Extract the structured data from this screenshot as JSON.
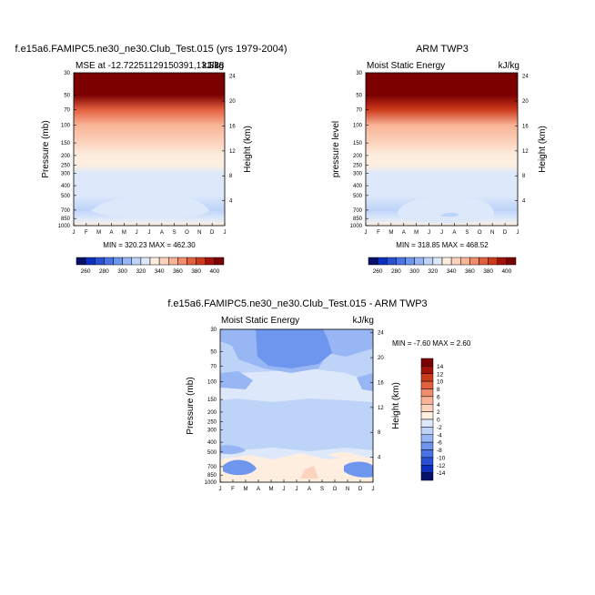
{
  "colors": {
    "mse_scale": [
      "#06116b",
      "#0c2fbf",
      "#2850d6",
      "#4a74e6",
      "#6f96ef",
      "#98b6f4",
      "#bdd3f8",
      "#dde9fb",
      "#fdeee0",
      "#fcd3bd",
      "#f9b497",
      "#f18c6c",
      "#e3603f",
      "#cc3a1c",
      "#a31208",
      "#7b0000"
    ],
    "diff_scale": [
      "#06116b",
      "#0c2fbf",
      "#2850d6",
      "#4a74e6",
      "#6f96ef",
      "#98b6f4",
      "#bdd3f8",
      "#dde9fb",
      "#fdeee0",
      "#fcd3bd",
      "#f9b497",
      "#f18c6c",
      "#e3603f",
      "#cc3a1c",
      "#a31208",
      "#7b0000"
    ]
  },
  "chart_data": [
    {
      "type": "heatmap",
      "panel": "model",
      "title": "f.e15a6.FAMIPC5.ne30_ne30.Club_Test.015 (yrs 1979-2004)",
      "left_label": "MSE at -12.72251129150391,131.18",
      "right_label": "kJ/kg",
      "right_label_overlap": "33",
      "ylabel": "Pressure (mb)",
      "ylabel_right": "Height (km)",
      "x_ticks": [
        "J",
        "F",
        "M",
        "A",
        "M",
        "J",
        "J",
        "A",
        "S",
        "O",
        "N",
        "D",
        "J"
      ],
      "y_ticks": [
        "30",
        "50",
        "70",
        "100",
        "150",
        "200",
        "250",
        "300",
        "400",
        "500",
        "700",
        "850",
        "1000"
      ],
      "y_right_ticks": [
        "24",
        "20",
        "16",
        "12",
        "8",
        "4"
      ],
      "min_max": "MIN = 320.23 MAX = 462.30",
      "colorbar_labels": [
        "260",
        "280",
        "300",
        "320",
        "340",
        "360",
        "380",
        "400"
      ],
      "values_note": "MSE (kJ/kg) by pressure level, roughly constant across months",
      "pressure_levels": [
        30,
        50,
        70,
        100,
        150,
        200,
        250,
        300,
        400,
        500,
        700,
        850,
        1000
      ],
      "values": [
        460,
        400,
        378,
        355,
        340,
        333,
        330,
        329,
        327,
        325,
        318,
        324,
        336
      ]
    },
    {
      "type": "heatmap",
      "panel": "obs",
      "title": "ARM TWP3",
      "left_label": "Moist Static Energy",
      "right_label": "kJ/kg",
      "ylabel": "pressure level",
      "ylabel_right": "Height (km)",
      "x_ticks": [
        "J",
        "F",
        "M",
        "A",
        "M",
        "J",
        "J",
        "A",
        "S",
        "O",
        "N",
        "D",
        "J"
      ],
      "y_ticks": [
        "30",
        "50",
        "70",
        "100",
        "150",
        "200",
        "250",
        "300",
        "400",
        "500",
        "700",
        "850",
        "1000"
      ],
      "y_right_ticks": [
        "24",
        "20",
        "16",
        "12",
        "8",
        "4"
      ],
      "min_max": "MIN = 318.85 MAX = 468.52",
      "colorbar_labels": [
        "260",
        "280",
        "300",
        "320",
        "340",
        "360",
        "380",
        "400"
      ],
      "pressure_levels": [
        30,
        50,
        70,
        100,
        150,
        200,
        250,
        300,
        400,
        500,
        700,
        850,
        1000
      ],
      "values": [
        465,
        402,
        380,
        356,
        341,
        334,
        331,
        329,
        326,
        322,
        317,
        325,
        338
      ]
    },
    {
      "type": "heatmap",
      "panel": "difference",
      "title": "f.e15a6.FAMIPC5.ne30_ne30.Club_Test.015 - ARM TWP3",
      "left_label": "Moist Static Energy",
      "right_label": "kJ/kg",
      "ylabel": "Pressure (mb)",
      "ylabel_right": "Height (km)",
      "x_ticks": [
        "J",
        "F",
        "M",
        "A",
        "M",
        "J",
        "J",
        "A",
        "S",
        "O",
        "N",
        "D",
        "J"
      ],
      "y_ticks": [
        "30",
        "50",
        "70",
        "100",
        "150",
        "200",
        "250",
        "300",
        "400",
        "500",
        "700",
        "850",
        "1000"
      ],
      "y_right_ticks": [
        "24",
        "20",
        "16",
        "12",
        "8",
        "4"
      ],
      "min_max": "MIN =  -7.60 MAX =   2.60",
      "colorbar_labels": [
        "14",
        "12",
        "10",
        "8",
        "6",
        "4",
        "2",
        "0",
        "-2",
        "-4",
        "-6",
        "-8",
        "-10",
        "-12",
        "-14"
      ],
      "values_note": "Differences mostly between -6 and 2 kJ/kg"
    }
  ]
}
